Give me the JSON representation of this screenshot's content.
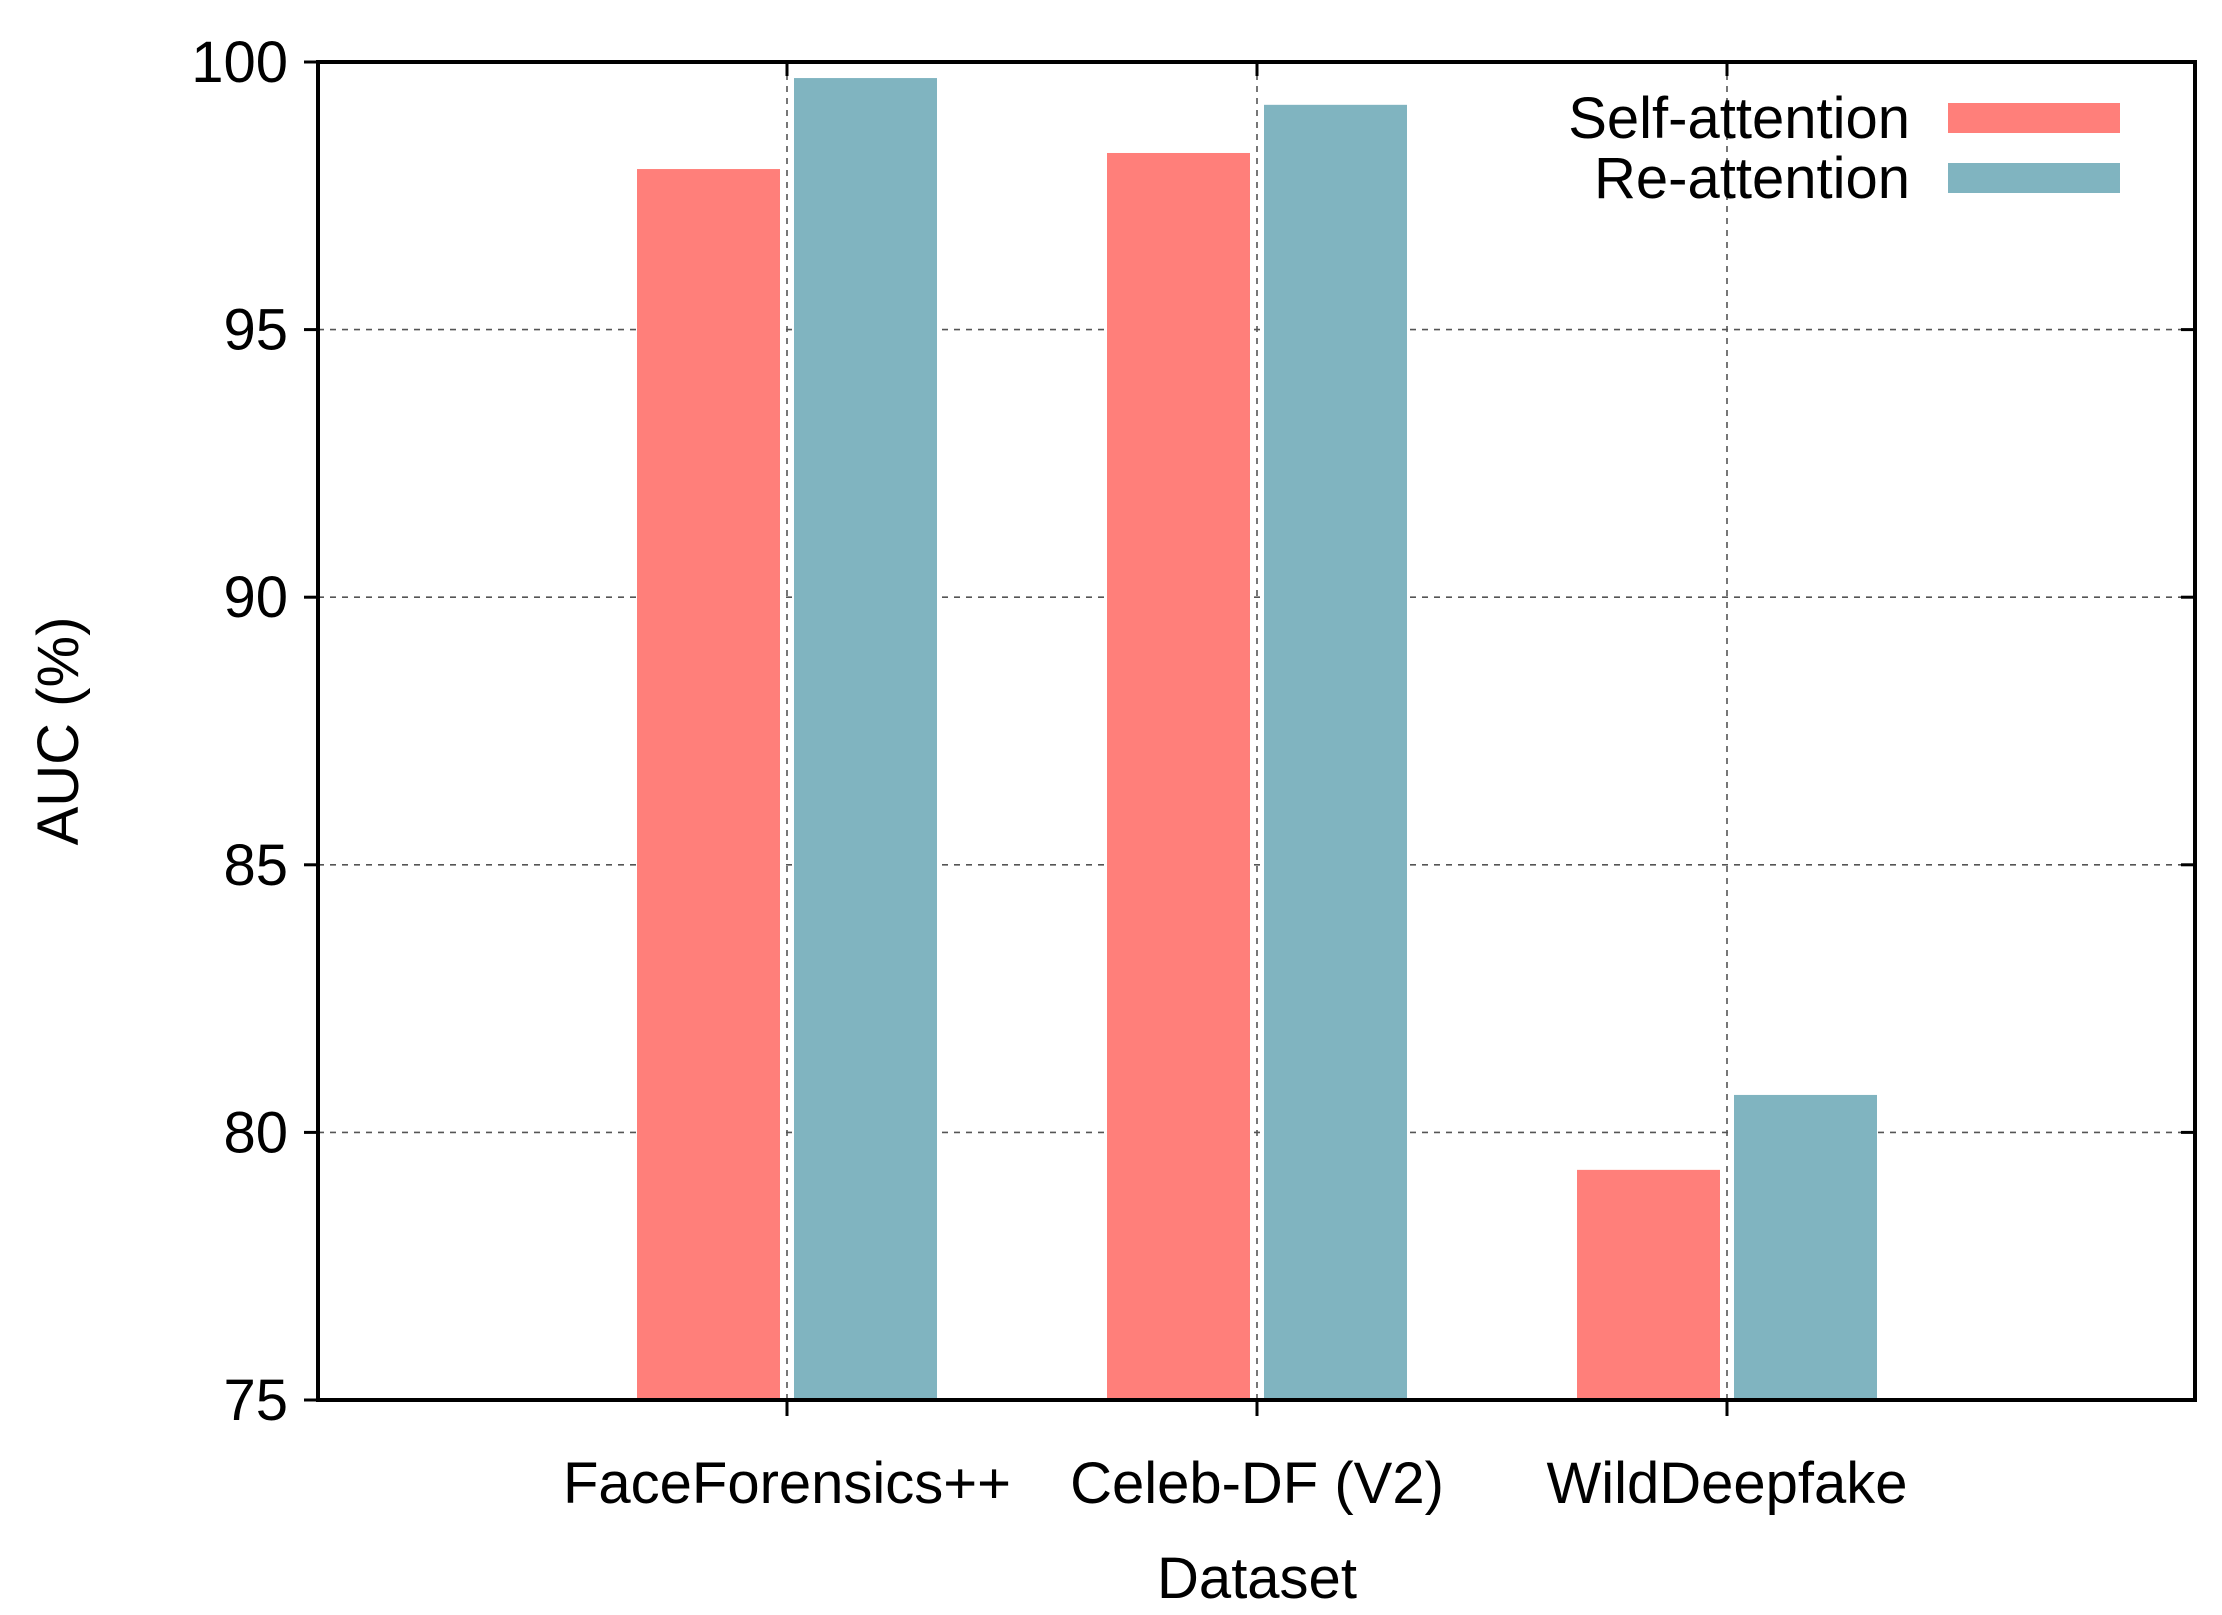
{
  "chart_data": {
    "type": "bar",
    "title": "",
    "xlabel": "Dataset",
    "ylabel": "AUC (%)",
    "ylim": [
      75,
      100
    ],
    "yticks": [
      75,
      80,
      85,
      90,
      95,
      100
    ],
    "grid": true,
    "legend_position": "top-right",
    "categories": [
      "FaceForensics++",
      "Celeb-DF (V2)",
      "WildDeepfake"
    ],
    "series": [
      {
        "name": "Self-attention",
        "color": "#ff7f7a",
        "values": [
          98.0,
          98.3,
          79.3
        ]
      },
      {
        "name": "Re-attention",
        "color": "#80b4c0",
        "values": [
          99.7,
          99.2,
          80.7
        ]
      }
    ]
  }
}
